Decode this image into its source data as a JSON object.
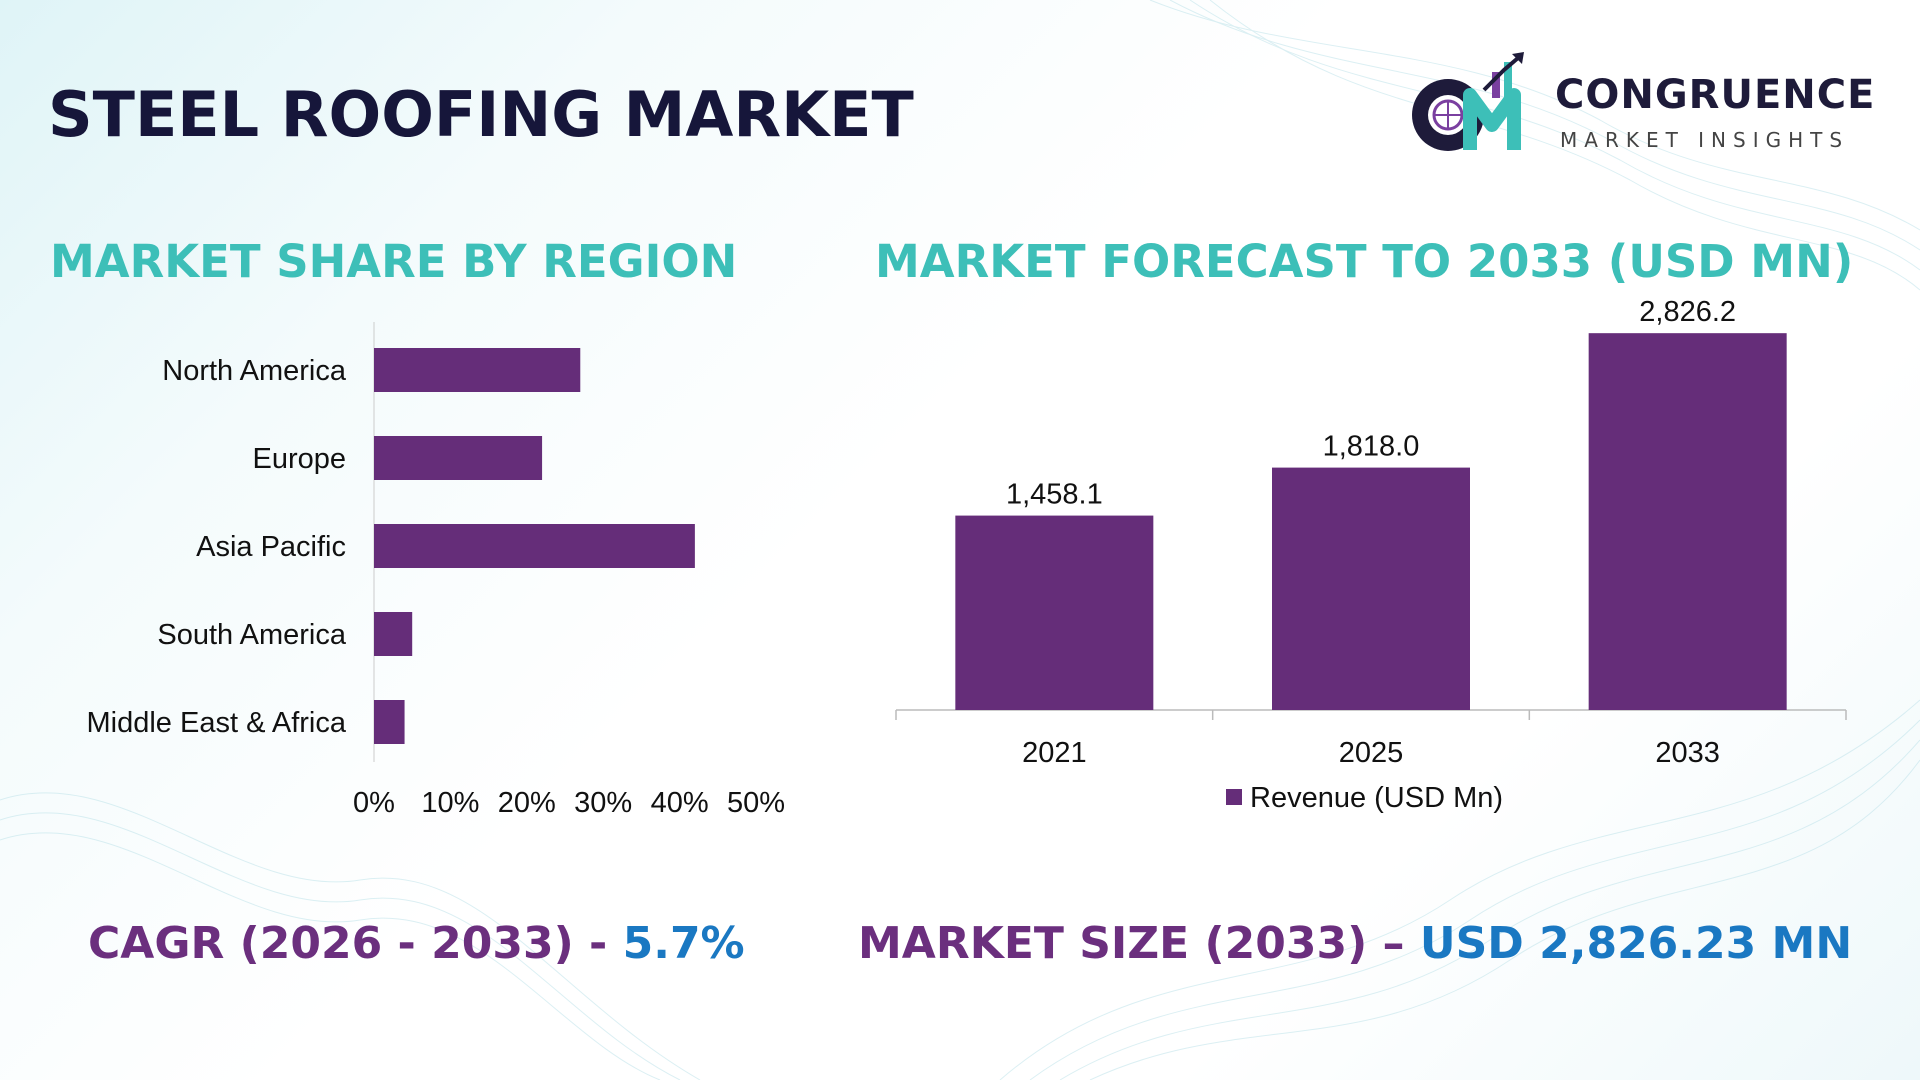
{
  "title": "STEEL ROOFING MARKET",
  "logo": {
    "brand": "CONGRUENCE",
    "tagline": "MARKET INSIGHTS"
  },
  "colors": {
    "bar": "#652d79",
    "title_teal": "#3dbfb8",
    "title_dark": "#16163a",
    "stat_purple": "#6b2f7e",
    "stat_blue": "#1a78c2"
  },
  "share_section": {
    "title": "MARKET SHARE BY REGION"
  },
  "forecast_section": {
    "title": "MARKET FORECAST TO 2033 (USD MN)"
  },
  "stats": {
    "cagr_label": "CAGR (2026 - 2033) - ",
    "cagr_value": "5.7%",
    "size_label": "MARKET SIZE (2033) – ",
    "size_value": "USD 2,826.23 MN"
  },
  "chart_data": [
    {
      "type": "bar",
      "orientation": "horizontal",
      "categories": [
        "North America",
        "Europe",
        "Asia Pacific",
        "South America",
        "Middle East & Africa"
      ],
      "values": [
        27,
        22,
        42,
        5,
        4
      ],
      "unit": "%",
      "xlim": [
        0,
        50
      ],
      "xticks": [
        "0%",
        "10%",
        "20%",
        "30%",
        "40%",
        "50%"
      ],
      "grid": false,
      "legend": "none"
    },
    {
      "type": "bar",
      "categories": [
        "2021",
        "2025",
        "2033"
      ],
      "series": [
        {
          "name": "Revenue (USD Mn)",
          "values": [
            1458.1,
            1818.0,
            2826.2
          ]
        }
      ],
      "data_labels": [
        "1,458.1",
        "1,818.0",
        "2,826.2"
      ],
      "ylim": [
        0,
        3000
      ],
      "grid": false,
      "legend": "bottom"
    }
  ]
}
